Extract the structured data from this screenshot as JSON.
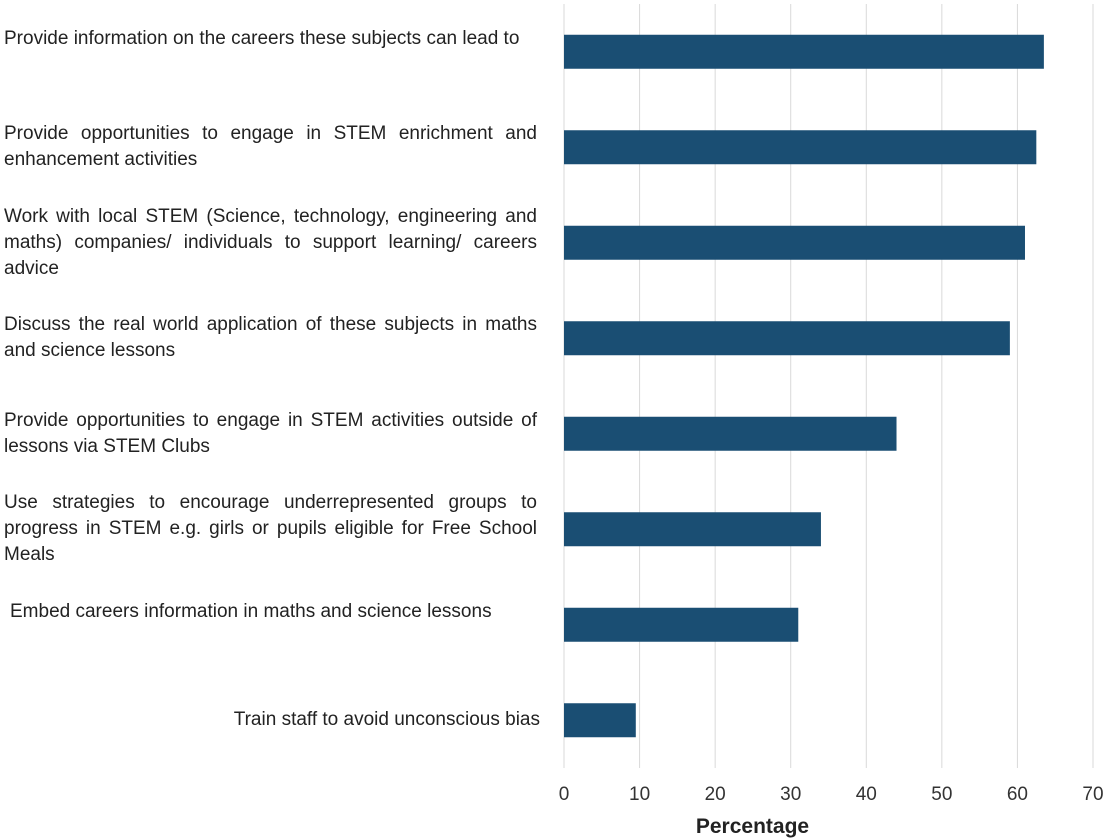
{
  "chart_data": {
    "type": "bar",
    "orientation": "horizontal",
    "categories": [
      "Provide information on the careers these subjects can lead to",
      "Provide opportunities to engage in STEM enrichment and enhancement activities",
      "Work with local STEM (Science, technology, engineering and maths) companies/ individuals to support learning/ careers advice",
      "Discuss the real world application of these subjects in maths and science lessons",
      "Provide opportunities to engage in STEM activities outside of lessons via STEM Clubs",
      "Use strategies to encourage underrepresented groups to progress in STEM e.g. girls or pupils eligible for Free School Meals",
      "Embed careers information in maths and science lessons",
      "Train staff to avoid unconscious bias"
    ],
    "values": [
      63.5,
      62.5,
      61,
      59,
      44,
      34,
      31,
      9.5
    ],
    "xlabel": "Percentage",
    "ylabel": "",
    "title": "",
    "xlim": [
      0,
      70
    ],
    "xticks": [
      "0",
      "10",
      "20",
      "30",
      "40",
      "50",
      "60",
      "70"
    ],
    "grid": "vertical",
    "legend": "none",
    "bar_color": "#1a4e73",
    "grid_color": "#d9d9d9"
  }
}
